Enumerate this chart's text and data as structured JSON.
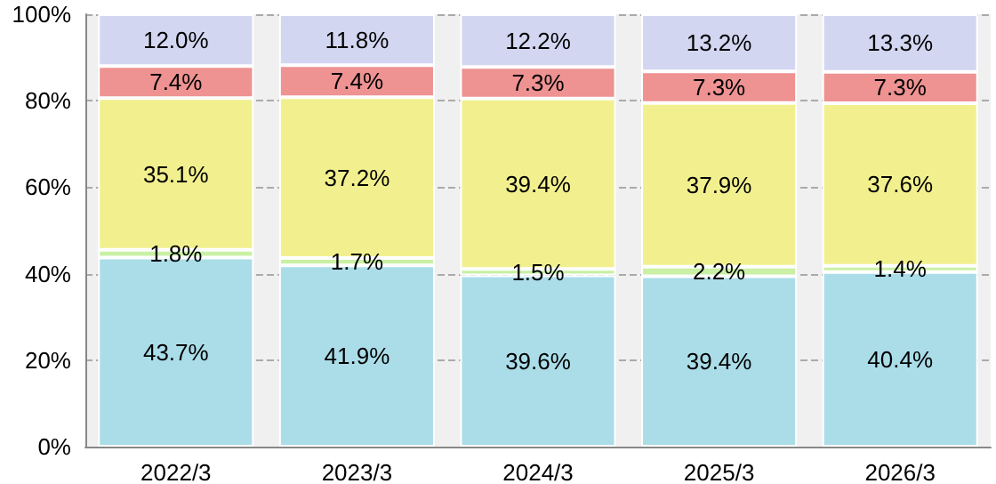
{
  "chart_data": {
    "type": "bar",
    "stacked": true,
    "categories": [
      "2022/3",
      "2023/3",
      "2024/3",
      "2025/3",
      "2026/3"
    ],
    "series": [
      {
        "color": "#abdde9",
        "values": [
          43.7,
          41.9,
          39.6,
          39.4,
          40.4
        ],
        "value_labels": [
          "43.7%",
          "41.9%",
          "39.6%",
          "39.4%",
          "40.4%"
        ]
      },
      {
        "color": "#c9f0a4",
        "values": [
          1.8,
          1.7,
          1.5,
          2.2,
          1.4
        ],
        "value_labels": [
          "1.8%",
          "1.7%",
          "1.5%",
          "2.2%",
          "1.4%"
        ]
      },
      {
        "color": "#f2f08e",
        "values": [
          35.1,
          37.2,
          39.4,
          37.9,
          37.6
        ],
        "value_labels": [
          "35.1%",
          "37.2%",
          "39.4%",
          "37.9%",
          "37.6%"
        ]
      },
      {
        "color": "#ee9292",
        "values": [
          7.4,
          7.4,
          7.3,
          7.3,
          7.3
        ],
        "value_labels": [
          "7.4%",
          "7.4%",
          "7.3%",
          "7.3%",
          "7.3%"
        ]
      },
      {
        "color": "#d3d6f1",
        "values": [
          12.0,
          11.8,
          12.2,
          13.2,
          13.3
        ],
        "value_labels": [
          "12.0%",
          "11.8%",
          "12.2%",
          "13.2%",
          "13.3%"
        ]
      }
    ],
    "ylim": [
      0,
      100
    ],
    "yticks": [
      {
        "value": 0,
        "label": "0%"
      },
      {
        "value": 20,
        "label": "20%"
      },
      {
        "value": 40,
        "label": "40%"
      },
      {
        "value": 60,
        "label": "60%"
      },
      {
        "value": 80,
        "label": "80%"
      },
      {
        "value": 100,
        "label": "100%"
      }
    ],
    "grid": "y"
  }
}
